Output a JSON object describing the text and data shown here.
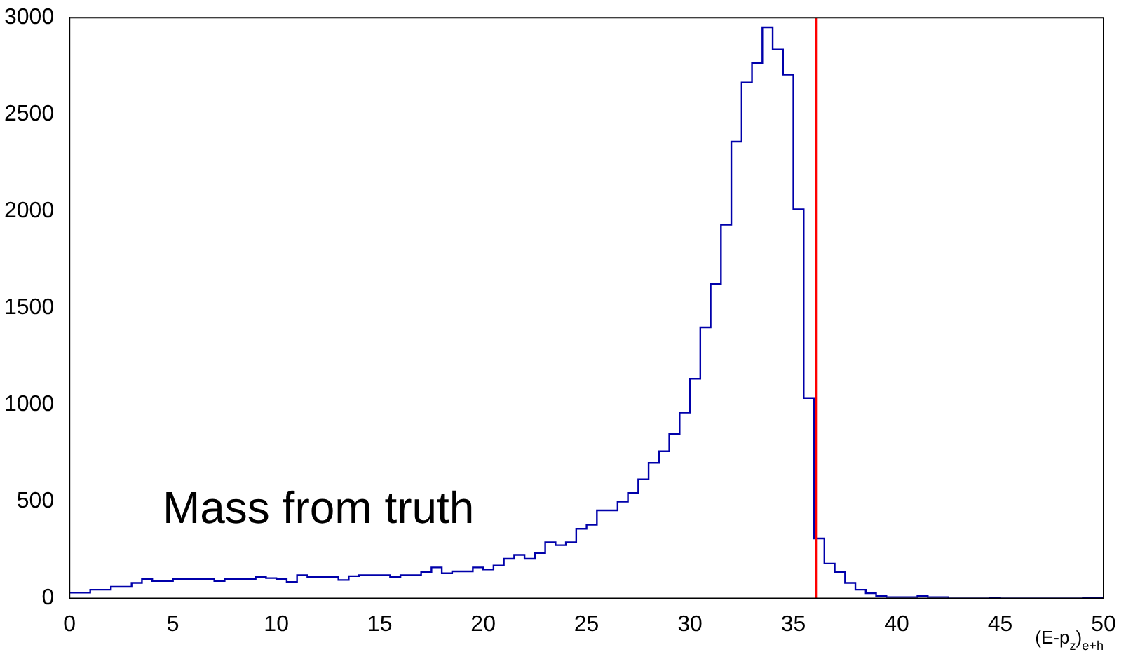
{
  "chart_data": {
    "type": "histogram",
    "xlabel": "(E-p$_{z}$)$_{e+h}$",
    "bins": [
      0,
      0.5,
      1,
      1.5,
      2,
      2.5,
      3,
      3.5,
      4,
      4.5,
      5,
      5.5,
      6,
      6.5,
      7,
      7.5,
      8,
      8.5,
      9,
      9.5,
      10,
      10.5,
      11,
      11.5,
      12,
      12.5,
      13,
      13.5,
      14,
      14.5,
      15,
      15.5,
      16,
      16.5,
      17,
      17.5,
      18,
      18.5,
      19,
      19.5,
      20,
      20.5,
      21,
      21.5,
      22,
      22.5,
      23,
      23.5,
      24,
      24.5,
      25,
      25.5,
      26,
      26.5,
      27,
      27.5,
      28,
      28.5,
      29,
      29.5,
      30,
      30.5,
      31,
      31.5,
      32,
      32.5,
      33,
      33.5,
      34,
      34.5,
      35,
      35.5,
      36,
      36.5,
      37,
      37.5,
      38,
      38.5,
      39,
      39.5,
      40,
      40.5,
      41,
      41.5,
      42,
      42.5,
      43,
      43.5,
      44,
      44.5,
      45,
      45.5,
      46,
      46.5,
      47,
      47.5,
      48,
      48.5,
      49,
      49.5,
      50
    ],
    "values": [
      30,
      30,
      45,
      45,
      60,
      60,
      80,
      100,
      90,
      90,
      100,
      100,
      100,
      100,
      90,
      100,
      100,
      100,
      110,
      105,
      100,
      85,
      120,
      110,
      110,
      110,
      95,
      115,
      120,
      120,
      120,
      110,
      120,
      120,
      135,
      160,
      130,
      140,
      140,
      160,
      150,
      170,
      205,
      225,
      205,
      235,
      290,
      275,
      290,
      360,
      380,
      455,
      455,
      500,
      545,
      615,
      700,
      760,
      850,
      960,
      1135,
      1400,
      1625,
      1930,
      2360,
      2665,
      2765,
      2950,
      2835,
      2705,
      2010,
      1035,
      310,
      180,
      135,
      80,
      45,
      27,
      12,
      7,
      7,
      7,
      12,
      7,
      7,
      0,
      0,
      0,
      0,
      5,
      0,
      0,
      0,
      0,
      0,
      0,
      0,
      0,
      5,
      5
    ],
    "color": "#0000aa",
    "xlim": [
      0,
      50
    ],
    "xticks": [
      0,
      5,
      10,
      15,
      20,
      25,
      30,
      35,
      40,
      45,
      50
    ],
    "ylim": [
      0,
      3000
    ],
    "yticks": [
      0,
      500,
      1000,
      1500,
      2000,
      2500,
      3000
    ],
    "grid": false,
    "ref_lines": [
      {
        "axis": "x",
        "value": 36.1,
        "color": "#ff0000"
      }
    ],
    "annotations": [
      "Mass from truth"
    ]
  }
}
